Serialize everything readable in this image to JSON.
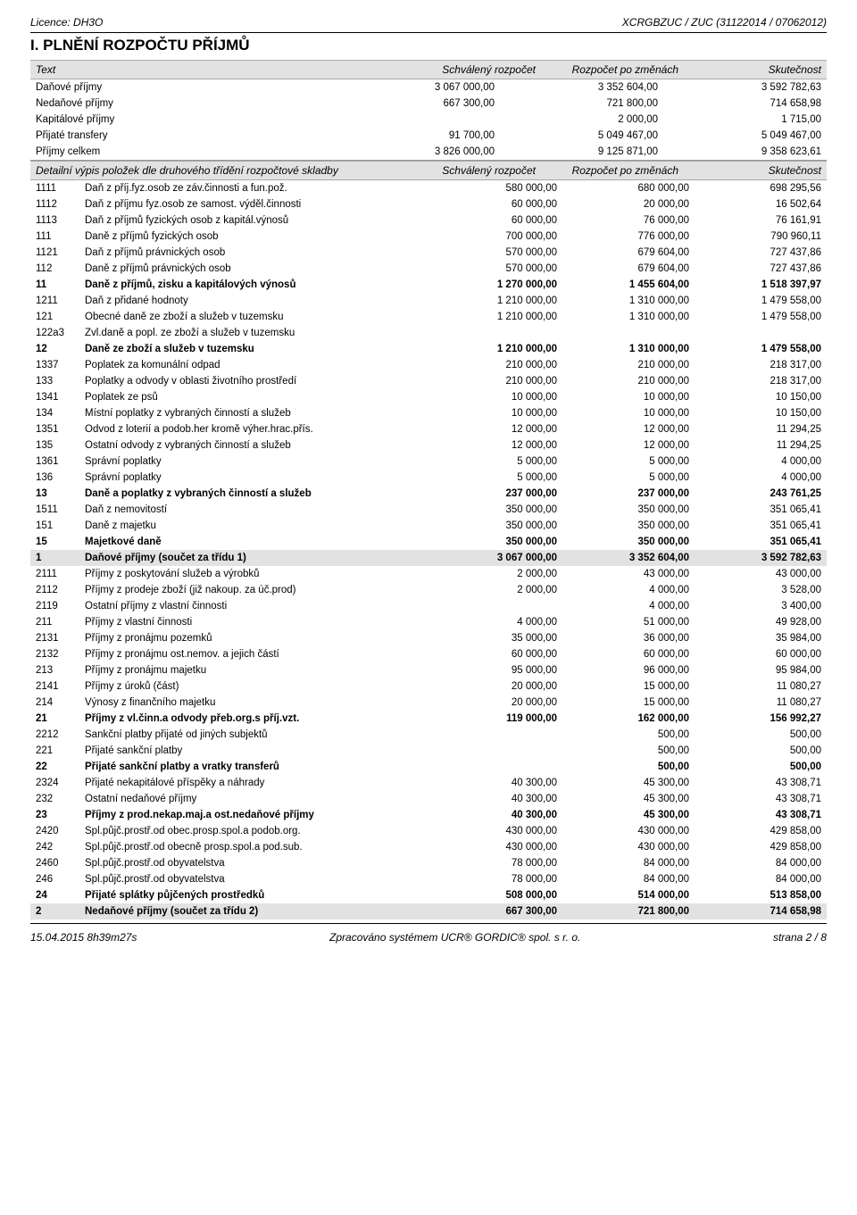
{
  "header": {
    "left": "Licence: DH3O",
    "right": "XCRGBZUC / ZUC (31122014 / 07062012)"
  },
  "title": "I. PLNĚNÍ ROZPOČTU PŘÍJMŮ",
  "col_headers": {
    "text": "Text",
    "a": "Schválený rozpočet",
    "b": "Rozpočet po změnách",
    "c": "Skutečnost"
  },
  "summary_rows": [
    {
      "text": "Daňové příjmy",
      "a": "3 067 000,00",
      "b": "3 352 604,00",
      "c": "3 592 782,63"
    },
    {
      "text": "Nedaňové příjmy",
      "a": "667 300,00",
      "b": "721 800,00",
      "c": "714 658,98"
    },
    {
      "text": "Kapitálové příjmy",
      "a": "",
      "b": "2 000,00",
      "c": "1 715,00"
    },
    {
      "text": "Přijaté transfery",
      "a": "91 700,00",
      "b": "5 049 467,00",
      "c": "5 049 467,00"
    },
    {
      "text": "Příjmy celkem",
      "a": "3 826 000,00",
      "b": "9 125 871,00",
      "c": "9 358 623,61"
    }
  ],
  "sub_header_text": "Detailní výpis položek dle druhového třídění rozpočtové skladby",
  "detail_rows": [
    {
      "code": "1111",
      "text": "Daň z příj.fyz.osob ze záv.činnosti a fun.pož.",
      "a": "580 000,00",
      "b": "680 000,00",
      "c": "698 295,56"
    },
    {
      "code": "1112",
      "text": "Daň z příjmu fyz.osob ze samost. výděl.činnosti",
      "a": "60 000,00",
      "b": "20 000,00",
      "c": "16 502,64"
    },
    {
      "code": "1113",
      "text": "Daň z příjmů fyzických osob z kapitál.výnosů",
      "a": "60 000,00",
      "b": "76 000,00",
      "c": "76 161,91"
    },
    {
      "code": "111",
      "text": "Daně z příjmů fyzických osob",
      "a": "700 000,00",
      "b": "776 000,00",
      "c": "790 960,11"
    },
    {
      "code": "1121",
      "text": "Daň z příjmů právnických osob",
      "a": "570 000,00",
      "b": "679 604,00",
      "c": "727 437,86"
    },
    {
      "code": "112",
      "text": "Daně z příjmů právnických osob",
      "a": "570 000,00",
      "b": "679 604,00",
      "c": "727 437,86"
    },
    {
      "code": "11",
      "text": "Daně z příjmů, zisku a kapitálových výnosů",
      "a": "1 270 000,00",
      "b": "1 455 604,00",
      "c": "1 518 397,97",
      "b_": true
    },
    {
      "code": "1211",
      "text": "Daň z přidané hodnoty",
      "a": "1 210 000,00",
      "b": "1 310 000,00",
      "c": "1 479 558,00"
    },
    {
      "code": "121",
      "text": "Obecné daně ze zboží a služeb v tuzemsku",
      "a": "1 210 000,00",
      "b": "1 310 000,00",
      "c": "1 479 558,00"
    },
    {
      "code": "122a3",
      "text": "Zvl.daně a popl. ze zboží a služeb v tuzemsku",
      "a": "",
      "b": "",
      "c": ""
    },
    {
      "code": "12",
      "text": "Daně ze zboží a služeb v tuzemsku",
      "a": "1 210 000,00",
      "b": "1 310 000,00",
      "c": "1 479 558,00",
      "b_": true
    },
    {
      "code": "1337",
      "text": "Poplatek za komunální odpad",
      "a": "210 000,00",
      "b": "210 000,00",
      "c": "218 317,00"
    },
    {
      "code": "133",
      "text": "Poplatky a odvody v oblasti životního prostředí",
      "a": "210 000,00",
      "b": "210 000,00",
      "c": "218 317,00"
    },
    {
      "code": "1341",
      "text": "Poplatek ze psů",
      "a": "10 000,00",
      "b": "10 000,00",
      "c": "10 150,00"
    },
    {
      "code": "134",
      "text": "Místní poplatky z vybraných činností a služeb",
      "a": "10 000,00",
      "b": "10 000,00",
      "c": "10 150,00"
    },
    {
      "code": "1351",
      "text": "Odvod z loterií a podob.her kromě výher.hrac.přís.",
      "a": "12 000,00",
      "b": "12 000,00",
      "c": "11 294,25"
    },
    {
      "code": "135",
      "text": "Ostatní odvody z vybraných činností a služeb",
      "a": "12 000,00",
      "b": "12 000,00",
      "c": "11 294,25"
    },
    {
      "code": "1361",
      "text": "Správní poplatky",
      "a": "5 000,00",
      "b": "5 000,00",
      "c": "4 000,00"
    },
    {
      "code": "136",
      "text": "Správní poplatky",
      "a": "5 000,00",
      "b": "5 000,00",
      "c": "4 000,00"
    },
    {
      "code": "13",
      "text": "Daně a poplatky z vybraných činností a služeb",
      "a": "237 000,00",
      "b": "237 000,00",
      "c": "243 761,25",
      "b_": true
    },
    {
      "code": "1511",
      "text": "Daň z nemovitostí",
      "a": "350 000,00",
      "b": "350 000,00",
      "c": "351 065,41"
    },
    {
      "code": "151",
      "text": "Daně z majetku",
      "a": "350 000,00",
      "b": "350 000,00",
      "c": "351 065,41"
    },
    {
      "code": "15",
      "text": "Majetkové daně",
      "a": "350 000,00",
      "b": "350 000,00",
      "c": "351 065,41",
      "b_": true
    },
    {
      "code": "1",
      "text": "Daňové příjmy (součet za třídu 1)",
      "a": "3 067 000,00",
      "b": "3 352 604,00",
      "c": "3 592 782,63",
      "b_": true,
      "shade": true
    },
    {
      "code": "2111",
      "text": "Příjmy z poskytování služeb a výrobků",
      "a": "2 000,00",
      "b": "43 000,00",
      "c": "43 000,00"
    },
    {
      "code": "2112",
      "text": "Příjmy z prodeje zboží (již nakoup. za úč.prod)",
      "a": "2 000,00",
      "b": "4 000,00",
      "c": "3 528,00"
    },
    {
      "code": "2119",
      "text": "Ostatní příjmy z vlastní činnosti",
      "a": "",
      "b": "4 000,00",
      "c": "3 400,00"
    },
    {
      "code": "211",
      "text": "Příjmy z vlastní činnosti",
      "a": "4 000,00",
      "b": "51 000,00",
      "c": "49 928,00"
    },
    {
      "code": "2131",
      "text": "Příjmy z pronájmu pozemků",
      "a": "35 000,00",
      "b": "36 000,00",
      "c": "35 984,00"
    },
    {
      "code": "2132",
      "text": "Příjmy z pronájmu ost.nemov. a jejich částí",
      "a": "60 000,00",
      "b": "60 000,00",
      "c": "60 000,00"
    },
    {
      "code": "213",
      "text": "Příjmy z pronájmu majetku",
      "a": "95 000,00",
      "b": "96 000,00",
      "c": "95 984,00"
    },
    {
      "code": "2141",
      "text": "Příjmy z úroků (část)",
      "a": "20 000,00",
      "b": "15 000,00",
      "c": "11 080,27"
    },
    {
      "code": "214",
      "text": "Výnosy z finančního majetku",
      "a": "20 000,00",
      "b": "15 000,00",
      "c": "11 080,27"
    },
    {
      "code": "21",
      "text": "Příjmy z vl.činn.a odvody přeb.org.s příj.vzt.",
      "a": "119 000,00",
      "b": "162 000,00",
      "c": "156 992,27",
      "b_": true
    },
    {
      "code": "2212",
      "text": "Sankční platby přijaté od jiných subjektů",
      "a": "",
      "b": "500,00",
      "c": "500,00"
    },
    {
      "code": "221",
      "text": "Přijaté sankční platby",
      "a": "",
      "b": "500,00",
      "c": "500,00"
    },
    {
      "code": "22",
      "text": "Přijaté sankční platby a vratky transferů",
      "a": "",
      "b": "500,00",
      "c": "500,00",
      "b_": true
    },
    {
      "code": "2324",
      "text": "Přijaté nekapitálové příspěky a náhrady",
      "a": "40 300,00",
      "b": "45 300,00",
      "c": "43 308,71"
    },
    {
      "code": "232",
      "text": "Ostatní nedaňové příjmy",
      "a": "40 300,00",
      "b": "45 300,00",
      "c": "43 308,71"
    },
    {
      "code": "23",
      "text": "Příjmy z prod.nekap.maj.a ost.nedaňové příjmy",
      "a": "40 300,00",
      "b": "45 300,00",
      "c": "43 308,71",
      "b_": true
    },
    {
      "code": "2420",
      "text": "Spl.půjč.prostř.od obec.prosp.spol.a podob.org.",
      "a": "430 000,00",
      "b": "430 000,00",
      "c": "429 858,00"
    },
    {
      "code": "242",
      "text": "Spl.půjč.prostř.od obecně prosp.spol.a pod.sub.",
      "a": "430 000,00",
      "b": "430 000,00",
      "c": "429 858,00"
    },
    {
      "code": "2460",
      "text": "Spl.půjč.prostř.od obyvatelstva",
      "a": "78 000,00",
      "b": "84 000,00",
      "c": "84 000,00"
    },
    {
      "code": "246",
      "text": "Spl.půjč.prostř.od obyvatelstva",
      "a": "78 000,00",
      "b": "84 000,00",
      "c": "84 000,00"
    },
    {
      "code": "24",
      "text": "Přijaté splátky půjčených prostředků",
      "a": "508 000,00",
      "b": "514 000,00",
      "c": "513 858,00",
      "b_": true
    },
    {
      "code": "2",
      "text": "Nedaňové příjmy (součet za třídu 2)",
      "a": "667 300,00",
      "b": "721 800,00",
      "c": "714 658,98",
      "b_": true,
      "shade": true
    }
  ],
  "footer": {
    "left": "15.04.2015 8h39m27s",
    "center": "Zpracováno systémem UCR® GORDIC® spol. s r. o.",
    "right": "strana 2 / 8"
  }
}
